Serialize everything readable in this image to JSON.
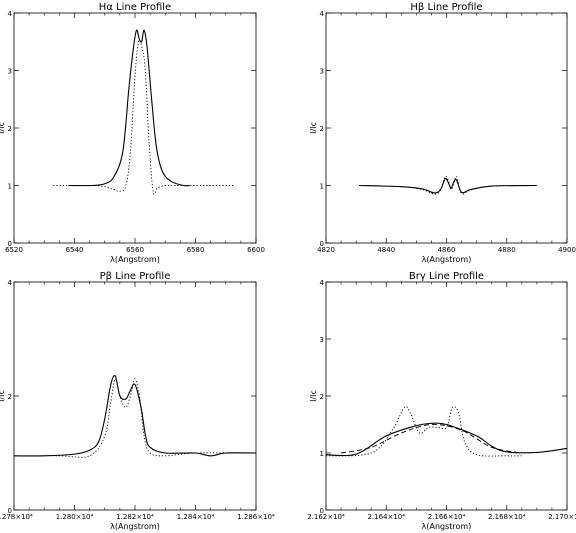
{
  "chart_data": [
    {
      "type": "line",
      "title": "Hα Line Profile",
      "xlabel": "λ(Angstrom)",
      "ylabel": "I/Ic",
      "xlim": [
        6520,
        6600
      ],
      "ylim": [
        0,
        4
      ],
      "xticks": [
        "6520",
        "6540",
        "6560",
        "6580",
        "6600"
      ],
      "yticks": [
        "0",
        "1",
        "2",
        "3",
        "4"
      ],
      "series": [
        {
          "style": "solid",
          "x": [
            6538,
            6546,
            6550,
            6553,
            6556,
            6558,
            6559.5,
            6560.5,
            6561.4,
            6562.2,
            6563.0,
            6564.0,
            6565.5,
            6567,
            6569,
            6572,
            6576,
            6578
          ],
          "y": [
            1.0,
            1.0,
            1.03,
            1.15,
            1.6,
            2.7,
            3.4,
            3.7,
            3.55,
            3.5,
            3.7,
            3.4,
            2.5,
            1.7,
            1.25,
            1.07,
            1.0,
            1.0
          ]
        },
        {
          "style": "dotted",
          "x": [
            6533,
            6545,
            6550,
            6553,
            6555,
            6557,
            6558.5,
            6560,
            6561.2,
            6562.3,
            6563.4,
            6564.6,
            6566,
            6567.5,
            6570,
            6573,
            6580,
            6593
          ],
          "y": [
            1.0,
            1.0,
            0.98,
            0.93,
            0.9,
            1.0,
            1.6,
            2.9,
            3.5,
            3.4,
            3.0,
            1.8,
            0.9,
            0.96,
            1.0,
            1.0,
            1.0,
            1.0
          ]
        }
      ]
    },
    {
      "type": "line",
      "title": "Hβ Line Profile",
      "xlabel": "λ(Angstrom)",
      "ylabel": "I/Ic",
      "xlim": [
        4820,
        4900
      ],
      "ylim": [
        0,
        4
      ],
      "xticks": [
        "4820",
        "4840",
        "4860",
        "4880",
        "4900"
      ],
      "yticks": [
        "0",
        "1",
        "2",
        "3",
        "4"
      ],
      "series": [
        {
          "style": "solid",
          "x": [
            4831,
            4845,
            4852,
            4856,
            4858,
            4859.6,
            4860.6,
            4861.5,
            4862.3,
            4863.3,
            4865,
            4868,
            4875,
            4890
          ],
          "y": [
            1.0,
            0.98,
            0.94,
            0.87,
            0.93,
            1.12,
            1.05,
            0.95,
            1.05,
            1.1,
            0.88,
            0.93,
            0.99,
            1.0
          ]
        },
        {
          "style": "dotted",
          "x": [
            4831,
            4845,
            4852,
            4856,
            4858,
            4859.5,
            4860.5,
            4861.6,
            4862.5,
            4863.4,
            4865,
            4868,
            4875,
            4890
          ],
          "y": [
            1.0,
            0.98,
            0.93,
            0.85,
            0.92,
            1.15,
            1.1,
            0.93,
            1.05,
            1.15,
            0.86,
            0.92,
            0.99,
            1.0
          ]
        }
      ]
    },
    {
      "type": "line",
      "title": "Pβ Line Profile",
      "xlabel": "λ(Angstrom)",
      "ylabel": "I/Ic",
      "xlim": [
        12780,
        12860
      ],
      "ylim": [
        0,
        4
      ],
      "xticks": [
        "1.278×10⁴",
        "1.280×10⁴",
        "1.282×10⁴",
        "1.284×10⁴",
        "1.286×10⁴"
      ],
      "yticks": [
        "0",
        "2",
        "4"
      ],
      "series": [
        {
          "style": "solid",
          "x": [
            12780,
            12790,
            12800,
            12805,
            12808,
            12810,
            12812,
            12813.5,
            12815,
            12817,
            12818.5,
            12820,
            12822,
            12823.5,
            12825,
            12830,
            12840,
            12845,
            12850,
            12860
          ],
          "y": [
            0.95,
            0.95,
            0.98,
            1.05,
            1.2,
            1.6,
            2.2,
            2.35,
            2.0,
            1.95,
            2.1,
            2.2,
            1.8,
            1.3,
            1.1,
            1.0,
            1.0,
            0.95,
            1.0,
            1.0
          ]
        },
        {
          "style": "dotted",
          "x": [
            12780,
            12795,
            12805,
            12810,
            12812,
            12813.5,
            12815,
            12817,
            12819,
            12820,
            12821.5,
            12823,
            12825,
            12830,
            12840,
            12860
          ],
          "y": [
            0.95,
            0.95,
            0.95,
            1.3,
            1.9,
            2.3,
            2.0,
            1.8,
            2.1,
            2.3,
            2.0,
            1.3,
            1.0,
            0.95,
            1.0,
            1.0
          ]
        }
      ]
    },
    {
      "type": "line",
      "title": "Brγ Line Profile",
      "xlabel": "λ(Angstrom)",
      "ylabel": "I/Ic",
      "xlim": [
        21620,
        21700
      ],
      "ylim": [
        0,
        4
      ],
      "xticks": [
        "2.162×10⁴",
        "2.164×10⁴",
        "2.166×10⁴",
        "2.168×10⁴",
        "2.170×10⁴"
      ],
      "yticks": [
        "0",
        "1",
        "2",
        "3",
        "4"
      ],
      "series": [
        {
          "style": "solid",
          "x": [
            21620,
            21630,
            21640,
            21650,
            21655,
            21660,
            21670,
            21675,
            21680,
            21690,
            21700
          ],
          "y": [
            0.97,
            0.98,
            1.3,
            1.48,
            1.52,
            1.5,
            1.3,
            1.12,
            1.02,
            1.01,
            1.08
          ]
        },
        {
          "style": "dashed",
          "x": [
            21625,
            21635,
            21645,
            21655,
            21665,
            21675,
            21685
          ],
          "y": [
            1.0,
            1.1,
            1.35,
            1.5,
            1.4,
            1.1,
            1.0
          ]
        },
        {
          "style": "dotted",
          "x": [
            21620,
            21635,
            21642,
            21646,
            21648,
            21651,
            21654,
            21657,
            21660,
            21662,
            21664,
            21666,
            21670,
            21680,
            21685
          ],
          "y": [
            0.95,
            1.0,
            1.4,
            1.8,
            1.7,
            1.35,
            1.45,
            1.45,
            1.45,
            1.8,
            1.7,
            1.2,
            0.97,
            0.95,
            0.95
          ]
        }
      ]
    }
  ]
}
